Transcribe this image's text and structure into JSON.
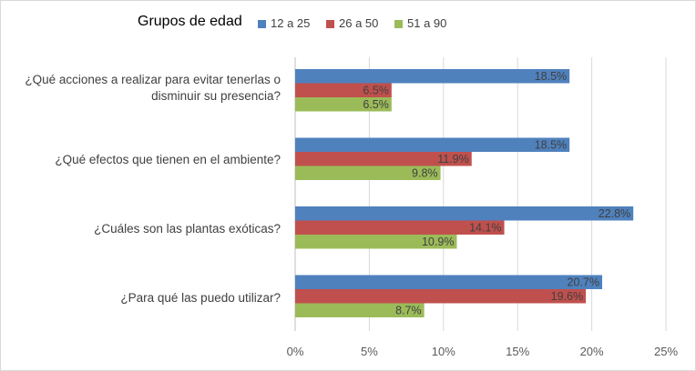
{
  "chart_data": {
    "type": "bar",
    "orientation": "horizontal",
    "legend_title": "Grupos de edad",
    "legend_position": "top",
    "categories": [
      "¿Qué acciones a realizar para evitar tenerlas o disminuir su presencia?",
      "¿Qué efectos que tienen en el ambiente?",
      "¿Cuáles son las plantas exóticas?",
      "¿Para qué las puedo utilizar?"
    ],
    "series": [
      {
        "name": "12 a 25",
        "color": "#4f81bd",
        "values": [
          18.5,
          18.5,
          22.8,
          20.7
        ],
        "labels": [
          "18.5%",
          "18.5%",
          "22.8%",
          "20.7%"
        ]
      },
      {
        "name": "26 a 50",
        "color": "#c0504d",
        "values": [
          6.5,
          11.9,
          14.1,
          19.6
        ],
        "labels": [
          "6.5%",
          "11.9%",
          "14.1%",
          "19.6%"
        ]
      },
      {
        "name": "51 a 90",
        "color": "#9bbb59",
        "values": [
          6.5,
          9.8,
          10.9,
          8.7
        ],
        "labels": [
          "6.5%",
          "9.8%",
          "10.9%",
          "8.7%"
        ]
      }
    ],
    "xlim": [
      0,
      25
    ],
    "x_ticks": [
      0,
      5,
      10,
      15,
      20,
      25
    ],
    "x_tick_labels": [
      "0%",
      "5%",
      "10%",
      "15%",
      "20%",
      "25%"
    ],
    "grid": true,
    "title": "",
    "xlabel": "",
    "ylabel": ""
  }
}
